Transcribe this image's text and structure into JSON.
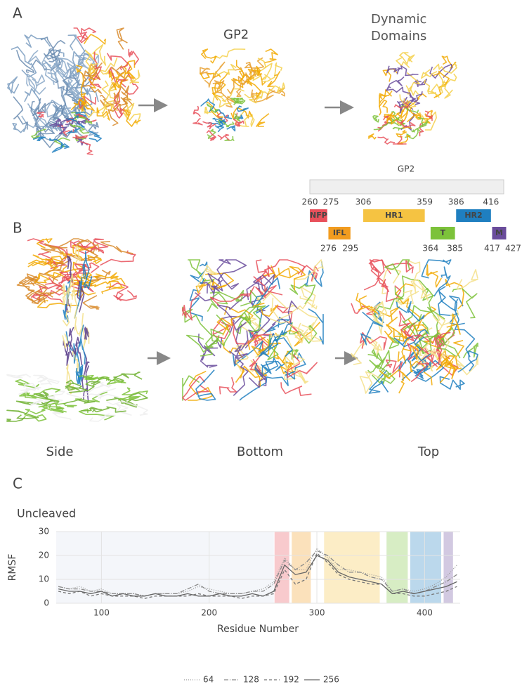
{
  "panel_a": {
    "label": "A",
    "gp2_label": "GP2",
    "dynamic_label": "Dynamic Domains"
  },
  "domain_map": {
    "title": "GP2",
    "domains": [
      {
        "name": "NFP",
        "start": 260,
        "end": 275,
        "color": "#e8505b"
      },
      {
        "name": "IFL",
        "start": 276,
        "end": 295,
        "color": "#f29c1f"
      },
      {
        "name": "HR1",
        "start": 306,
        "end": 359,
        "color": "#f5c342"
      },
      {
        "name": "T",
        "start": 364,
        "end": 385,
        "color": "#7cc23a"
      },
      {
        "name": "HR2",
        "start": 386,
        "end": 416,
        "color": "#1f7fc0"
      },
      {
        "name": "M",
        "start": 417,
        "end": 427,
        "color": "#6a4c9c"
      }
    ]
  },
  "panel_b": {
    "label": "B",
    "views": [
      "Side",
      "Bottom",
      "Top"
    ]
  },
  "panel_c": {
    "label": "C"
  },
  "chart_data": {
    "type": "line",
    "title": "Uncleaved",
    "xlabel": "Residue Number",
    "ylabel": "RMSF",
    "x": [
      60,
      70,
      80,
      90,
      100,
      110,
      120,
      130,
      140,
      150,
      160,
      170,
      180,
      190,
      200,
      210,
      220,
      230,
      240,
      250,
      260,
      270,
      280,
      290,
      300,
      310,
      320,
      330,
      340,
      350,
      360,
      370,
      380,
      390,
      400,
      410,
      420,
      430
    ],
    "series": [
      {
        "name": "64",
        "color": "#9a9a9a",
        "dash": "1,2",
        "values": [
          7,
          6,
          7,
          5,
          6,
          4,
          4,
          4,
          3,
          4,
          4,
          4,
          5,
          7,
          6,
          5,
          4,
          4,
          5,
          6,
          9,
          19,
          14,
          14,
          23,
          19,
          14,
          14,
          13,
          12,
          11,
          5,
          6,
          5,
          6,
          8,
          11,
          16
        ]
      },
      {
        "name": "128",
        "color": "#8a8a8a",
        "dash": "6,2,1,2",
        "values": [
          7,
          6,
          6,
          5,
          5,
          4,
          4,
          4,
          3,
          4,
          4,
          4,
          6,
          8,
          5,
          4,
          4,
          4,
          5,
          5,
          8,
          18,
          14,
          17,
          22,
          20,
          16,
          13,
          13,
          11,
          10,
          5,
          6,
          4,
          5,
          7,
          9,
          12
        ]
      },
      {
        "name": "192",
        "color": "#777777",
        "dash": "4,3",
        "values": [
          5,
          4,
          5,
          3,
          4,
          3,
          3,
          3,
          2,
          3,
          3,
          3,
          3,
          4,
          3,
          3,
          3,
          2,
          3,
          3,
          4,
          14,
          8,
          10,
          21,
          17,
          12,
          10,
          9,
          8,
          8,
          4,
          4,
          3,
          3,
          4,
          5,
          7
        ]
      },
      {
        "name": "256",
        "color": "#666666",
        "dash": "none",
        "values": [
          6,
          5,
          5,
          4,
          5,
          3,
          4,
          3,
          3,
          4,
          3,
          3,
          4,
          3,
          3,
          4,
          3,
          3,
          4,
          3,
          5,
          16,
          12,
          13,
          20,
          18,
          13,
          11,
          10,
          9,
          8,
          4,
          5,
          4,
          5,
          6,
          7,
          9
        ]
      }
    ],
    "xlim": [
      58,
      433
    ],
    "ylim": [
      0,
      30
    ],
    "xticks": [
      100,
      200,
      300,
      400
    ],
    "yticks": [
      0,
      10,
      20,
      30
    ],
    "grid": true
  }
}
